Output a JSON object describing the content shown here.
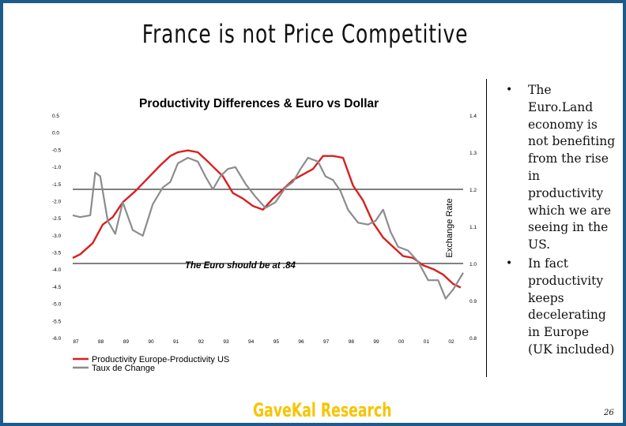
{
  "slide": {
    "title": "France is not Price Competitive",
    "bullets": [
      "The Euro.Land economy is not benefiting from the rise in productivity which we are seeing in the US.",
      "In fact productivity keeps decelerating in Europe (UK included)"
    ],
    "bullet_glyph": "•",
    "footer_brand": "GaveKal Research",
    "page_number": "26"
  },
  "chart_data": {
    "type": "line",
    "title": "Productivity Differences & Euro vs Dollar",
    "annotation": "The Euro should be at .84",
    "left_axis": {
      "ticks": [
        "0.5",
        "0.0",
        "-0.5",
        "-1.0",
        "-1.5",
        "-2.0",
        "-2.5",
        "-3.0",
        "-3.5",
        "-4.0",
        "-4.5",
        "-5.0",
        "-5.5",
        "-6.0"
      ]
    },
    "right_axis": {
      "label": "Exchange Rate",
      "ticks": [
        "1.4",
        "1.3",
        "1.2",
        "1.1",
        "1.0",
        "0.9",
        "0.8"
      ],
      "ylim": [
        0.8,
        1.4
      ]
    },
    "x_tick_labels": [
      "87",
      "88",
      "89",
      "90",
      "91",
      "92",
      "93",
      "94",
      "95",
      "96",
      "97",
      "98",
      "99",
      "00",
      "01",
      "02"
    ],
    "xlim": [
      0,
      15.6
    ],
    "reference_levels": [
      1.2,
      1.0
    ],
    "series": [
      {
        "name": "Productivity Europe-Productivity US",
        "color": "#d91f1f",
        "x": [
          0,
          0.3,
          0.8,
          1.2,
          1.6,
          2.0,
          2.5,
          3.0,
          3.5,
          3.9,
          4.2,
          4.6,
          5.0,
          5.4,
          5.7,
          6.0,
          6.4,
          6.8,
          7.2,
          7.6,
          8.0,
          8.4,
          8.8,
          9.2,
          9.6,
          10.0,
          10.4,
          10.8,
          11.2,
          11.6,
          12.0,
          12.4,
          12.8,
          13.2,
          13.6,
          14.0,
          14.4,
          14.8,
          15.2,
          15.5
        ],
        "y": [
          1.015,
          1.025,
          1.055,
          1.105,
          1.125,
          1.165,
          1.195,
          1.23,
          1.265,
          1.29,
          1.3,
          1.305,
          1.3,
          1.275,
          1.255,
          1.235,
          1.19,
          1.175,
          1.155,
          1.145,
          1.175,
          1.2,
          1.225,
          1.24,
          1.255,
          1.29,
          1.29,
          1.285,
          1.21,
          1.17,
          1.11,
          1.07,
          1.045,
          1.02,
          1.015,
          0.995,
          0.985,
          0.97,
          0.945,
          0.935
        ]
      },
      {
        "name": "Taux de Change",
        "color": "#8c8c8c",
        "x": [
          0,
          0.3,
          0.7,
          0.9,
          1.1,
          1.4,
          1.7,
          2.0,
          2.4,
          2.8,
          3.2,
          3.6,
          3.9,
          4.2,
          4.6,
          5.0,
          5.3,
          5.6,
          5.9,
          6.2,
          6.5,
          6.9,
          7.3,
          7.7,
          8.1,
          8.5,
          8.8,
          9.1,
          9.4,
          9.8,
          10.1,
          10.4,
          10.7,
          11.0,
          11.4,
          11.8,
          12.1,
          12.4,
          12.7,
          13.0,
          13.4,
          13.8,
          14.2,
          14.6,
          14.9,
          15.2,
          15.6
        ],
        "y": [
          1.13,
          1.125,
          1.13,
          1.245,
          1.235,
          1.115,
          1.08,
          1.165,
          1.09,
          1.075,
          1.16,
          1.205,
          1.22,
          1.27,
          1.285,
          1.275,
          1.235,
          1.2,
          1.235,
          1.255,
          1.26,
          1.215,
          1.18,
          1.15,
          1.165,
          1.205,
          1.22,
          1.255,
          1.285,
          1.275,
          1.235,
          1.225,
          1.195,
          1.145,
          1.11,
          1.105,
          1.115,
          1.145,
          1.085,
          1.045,
          1.035,
          1.005,
          0.955,
          0.955,
          0.905,
          0.93,
          0.975
        ]
      }
    ]
  }
}
